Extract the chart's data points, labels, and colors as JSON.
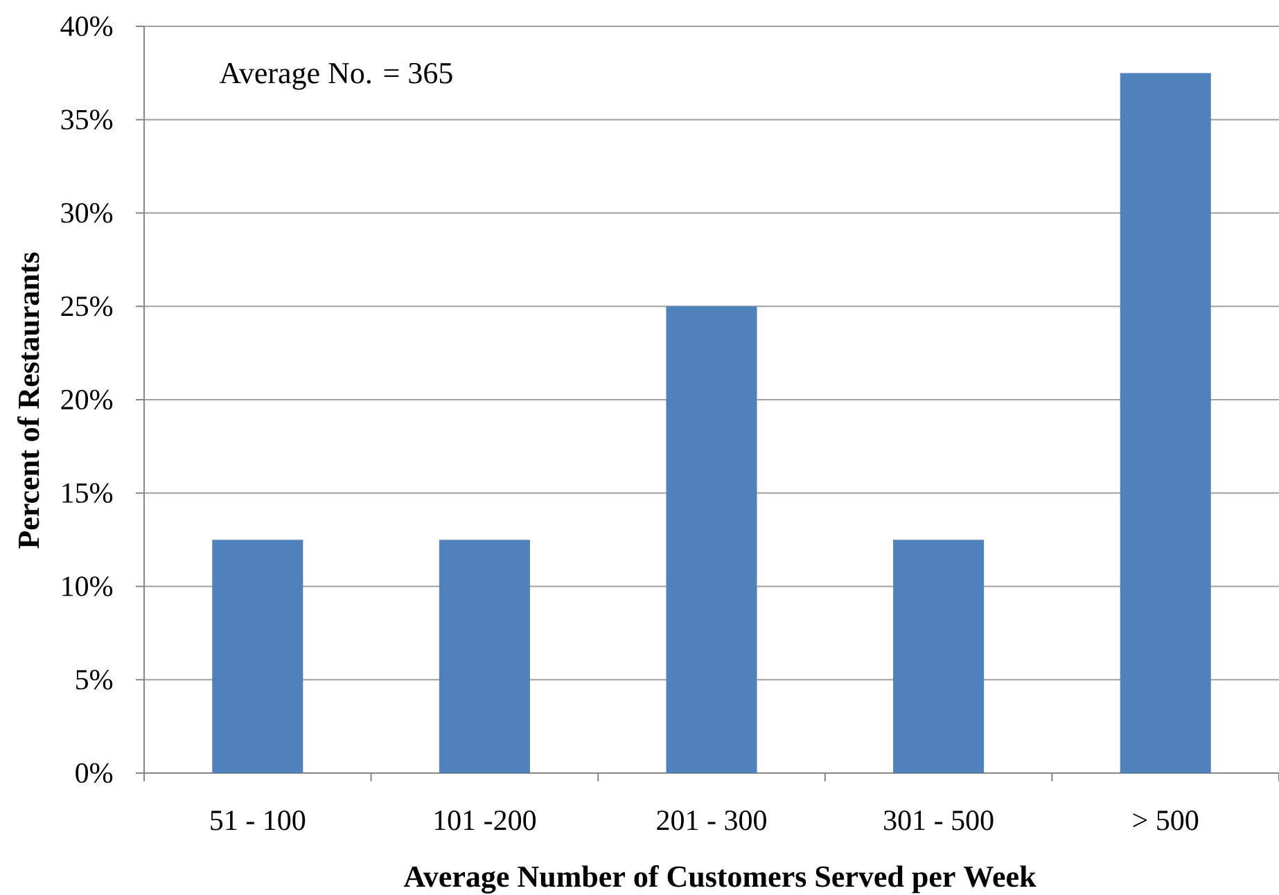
{
  "chart_data": {
    "type": "bar",
    "xlabel": "Average Number of Customers Served per Week",
    "ylabel": "Percent of Restaurants",
    "categories": [
      "51 - 100",
      "101 -200",
      "201 - 300",
      "301 - 500",
      "> 500"
    ],
    "values": [
      12.5,
      12.5,
      25,
      12.5,
      37.5
    ],
    "color": "#4f81bd",
    "ylim": [
      0,
      40
    ],
    "yticks": [
      {
        "value": 0,
        "label": "0%"
      },
      {
        "value": 5,
        "label": "5%"
      },
      {
        "value": 10,
        "label": "10%"
      },
      {
        "value": 15,
        "label": "15%"
      },
      {
        "value": 20,
        "label": "20%"
      },
      {
        "value": 25,
        "label": "25%"
      },
      {
        "value": 30,
        "label": "30%"
      },
      {
        "value": 35,
        "label": "35%"
      },
      {
        "value": 40,
        "label": "40%"
      }
    ],
    "grid": "y",
    "annotations": [
      "Average No. = 365"
    ]
  }
}
